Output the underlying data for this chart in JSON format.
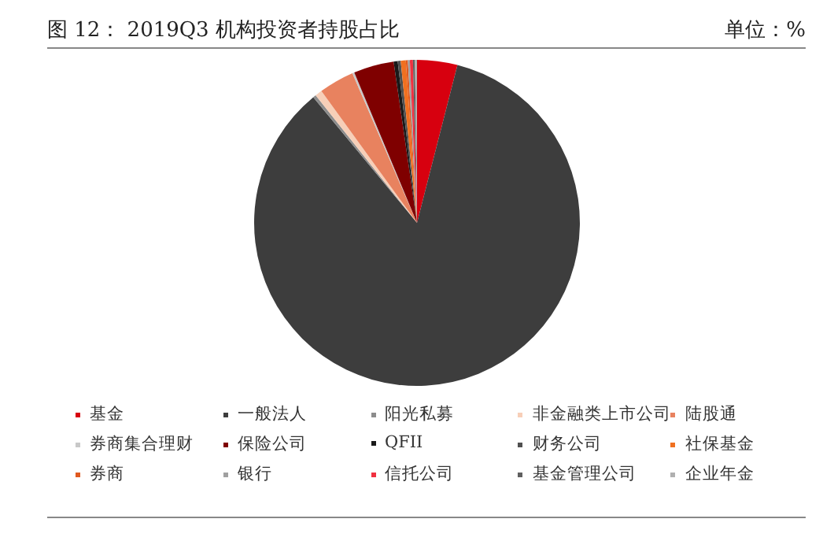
{
  "chart_data": {
    "type": "pie",
    "title": "图 12：    2019Q3 机构投资者持股占比",
    "annotations": [
      "单位：%"
    ],
    "categories": [
      "基金",
      "一般法人",
      "阳光私募",
      "非金融类上市公司",
      "陆股通",
      "券商集合理财",
      "保险公司",
      "QFII",
      "财务公司",
      "社保基金",
      "券商",
      "银行",
      "信托公司",
      "基金管理公司",
      "企业年金"
    ],
    "values": [
      4,
      85.1,
      0.3,
      0.7,
      3.5,
      0.2,
      4,
      0.4,
      0.3,
      0.5,
      0.2,
      0.2,
      0.3,
      0.2,
      0.2
    ],
    "colors": [
      "#d7000f",
      "#3d3d3d",
      "#8c8c8c",
      "#f7cfb8",
      "#e8825f",
      "#c8c8c8",
      "#7f0000",
      "#1a1a1a",
      "#505050",
      "#f07020",
      "#e05a20",
      "#a0a0a0",
      "#f03040",
      "#606060",
      "#b0b0b0"
    ],
    "legend": "bottom"
  }
}
